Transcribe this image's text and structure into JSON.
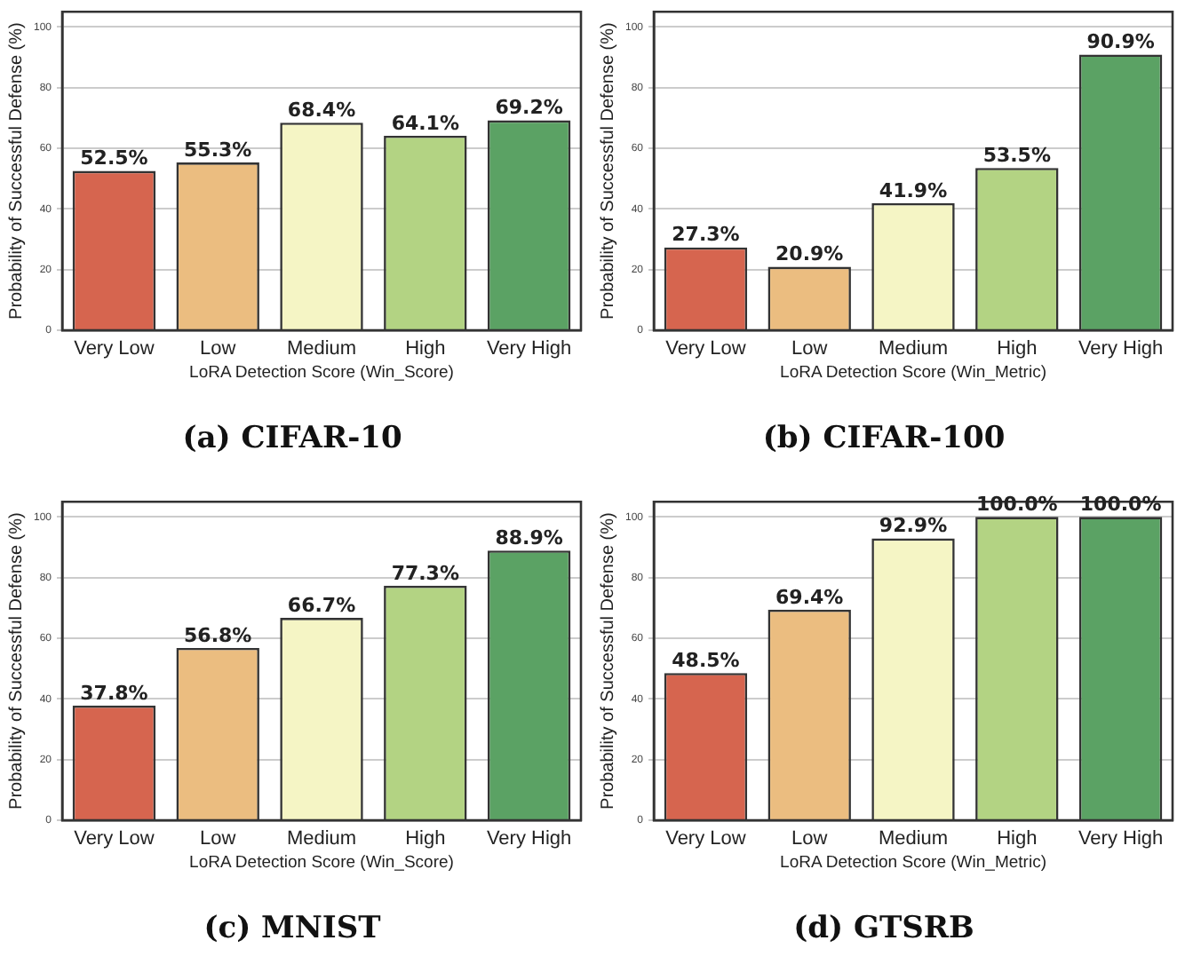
{
  "chart_data": [
    {
      "type": "bar",
      "title": "(a) CIFAR-10",
      "xlabel": "LoRA Detection Score (Win_Score)",
      "ylabel": "Probability of Successful Defense (%)",
      "categories": [
        "Very Low",
        "Low",
        "Medium",
        "High",
        "Very High"
      ],
      "values": [
        52.5,
        55.3,
        68.4,
        64.1,
        69.2
      ],
      "colors": [
        "#d6654f",
        "#ebbd80",
        "#f5f5c5",
        "#b3d383",
        "#5ba264"
      ],
      "value_labels": [
        "52.5%",
        "55.3%",
        "68.4%",
        "64.1%",
        "69.2%"
      ],
      "ylim": [
        0,
        105
      ],
      "yticks": [
        0,
        20,
        40,
        60,
        80,
        100
      ],
      "grid": "y",
      "legend": false
    },
    {
      "type": "bar",
      "title": "(b) CIFAR-100",
      "xlabel": "LoRA Detection Score (Win_Metric)",
      "ylabel": "Probability of Successful Defense (%)",
      "categories": [
        "Very Low",
        "Low",
        "Medium",
        "High",
        "Very High"
      ],
      "values": [
        27.3,
        20.9,
        41.9,
        53.5,
        90.9
      ],
      "colors": [
        "#d6654f",
        "#ebbd80",
        "#f5f5c5",
        "#b3d383",
        "#5ba264"
      ],
      "value_labels": [
        "27.3%",
        "20.9%",
        "41.9%",
        "53.5%",
        "90.9%"
      ],
      "ylim": [
        0,
        105
      ],
      "yticks": [
        0,
        20,
        40,
        60,
        80,
        100
      ],
      "grid": "y",
      "legend": false
    },
    {
      "type": "bar",
      "title": "(c) MNIST",
      "xlabel": "LoRA Detection Score (Win_Score)",
      "ylabel": "Probability of Successful Defense (%)",
      "categories": [
        "Very Low",
        "Low",
        "Medium",
        "High",
        "Very High"
      ],
      "values": [
        37.8,
        56.8,
        66.7,
        77.3,
        88.9
      ],
      "colors": [
        "#d6654f",
        "#ebbd80",
        "#f5f5c5",
        "#b3d383",
        "#5ba264"
      ],
      "value_labels": [
        "37.8%",
        "56.8%",
        "66.7%",
        "77.3%",
        "88.9%"
      ],
      "ylim": [
        0,
        105
      ],
      "yticks": [
        0,
        20,
        40,
        60,
        80,
        100
      ],
      "grid": "y",
      "legend": false
    },
    {
      "type": "bar",
      "title": "(d) GTSRB",
      "xlabel": "LoRA Detection Score (Win_Metric)",
      "ylabel": "Probability of Successful Defense (%)",
      "categories": [
        "Very Low",
        "Low",
        "Medium",
        "High",
        "Very High"
      ],
      "values": [
        48.5,
        69.4,
        92.9,
        100.0,
        100.0
      ],
      "colors": [
        "#d6654f",
        "#ebbd80",
        "#f5f5c5",
        "#b3d383",
        "#5ba264"
      ],
      "value_labels": [
        "48.5%",
        "69.4%",
        "92.9%",
        "100.0%",
        "100.0%"
      ],
      "ylim": [
        0,
        105
      ],
      "yticks": [
        0,
        20,
        40,
        60,
        80,
        100
      ],
      "grid": "y",
      "legend": false
    }
  ]
}
